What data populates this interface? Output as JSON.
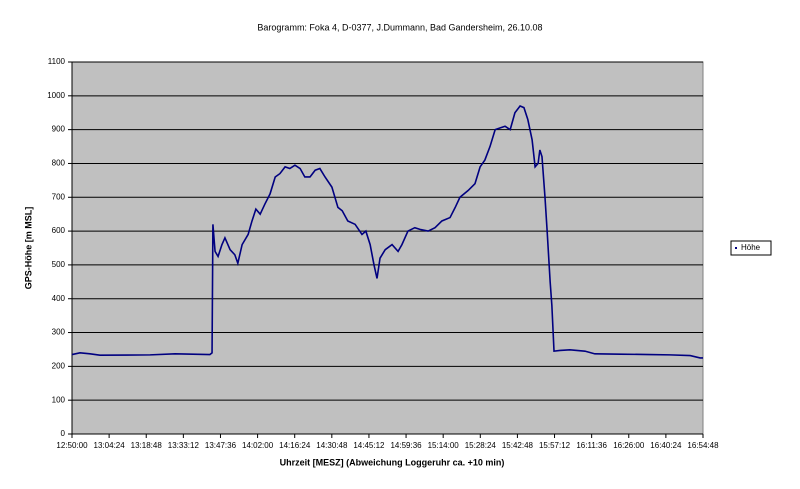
{
  "chart_data": {
    "type": "line",
    "title": "Barogramm: Foka 4, D-0377, J.Dummann, Bad Gandersheim, 26.10.08",
    "x_label": "Uhrzeit [MESZ] (Abweichung Loggeruhr ca. +10 min)",
    "y_label": "GPS-Höhe [m MSL]",
    "x": [
      "12:50:00",
      "12:53:06",
      "12:57:00",
      "13:00:50",
      "13:20:20",
      "13:30:00",
      "13:43:30",
      "13:44:20",
      "13:44:40",
      "13:45:30",
      "13:46:40",
      "13:48:10",
      "13:49:20",
      "13:51:20",
      "13:53:10",
      "13:54:20",
      "13:56:00",
      "13:58:20",
      "13:59:50",
      "14:01:20",
      "14:03:00",
      "14:04:50",
      "14:06:50",
      "14:08:50",
      "14:10:40",
      "14:12:40",
      "14:14:30",
      "14:16:30",
      "14:18:30",
      "14:20:20",
      "14:22:20",
      "14:24:20",
      "14:26:10",
      "14:28:10",
      "14:30:50",
      "14:33:10",
      "14:34:50",
      "14:37:00",
      "14:39:50",
      "14:42:30",
      "14:44:00",
      "14:45:40",
      "14:47:10",
      "14:48:20",
      "14:49:30",
      "14:51:30",
      "14:54:10",
      "14:56:30",
      "14:58:00",
      "15:00:20",
      "15:03:00",
      "15:05:00",
      "15:08:10",
      "15:10:50",
      "15:13:30",
      "15:16:40",
      "15:18:40",
      "15:20:30",
      "15:23:40",
      "15:26:20",
      "15:28:20",
      "15:30:10",
      "15:32:10",
      "15:34:10",
      "15:36:00",
      "15:38:00",
      "15:40:00",
      "15:41:50",
      "15:43:50",
      "15:45:20",
      "15:46:50",
      "15:48:30",
      "15:49:40",
      "15:50:50",
      "15:51:30",
      "15:52:20",
      "15:53:30",
      "15:54:20",
      "15:55:30",
      "15:56:10",
      "15:57:00",
      "15:59:20",
      "16:03:10",
      "16:09:00",
      "16:12:50",
      "16:22:40",
      "16:34:10",
      "16:42:00",
      "16:49:50",
      "16:53:40",
      "16:54:48"
    ],
    "series": [
      {
        "name": "Höhe",
        "color": "#000080",
        "values": [
          235,
          240,
          237,
          233,
          234,
          237,
          235,
          240,
          620,
          540,
          525,
          560,
          580,
          545,
          530,
          505,
          560,
          590,
          630,
          665,
          650,
          680,
          710,
          760,
          770,
          790,
          785,
          795,
          785,
          760,
          760,
          780,
          785,
          760,
          730,
          670,
          660,
          630,
          620,
          590,
          600,
          560,
          500,
          460,
          520,
          545,
          560,
          540,
          560,
          600,
          610,
          605,
          600,
          610,
          630,
          640,
          670,
          700,
          720,
          740,
          790,
          810,
          850,
          900,
          905,
          910,
          900,
          950,
          970,
          965,
          930,
          870,
          790,
          800,
          840,
          820,
          700,
          600,
          450,
          380,
          245,
          247,
          249,
          245,
          237,
          236,
          235,
          234,
          232,
          225,
          225
        ]
      }
    ],
    "xlim": [
      "12:50:00",
      "16:54:48"
    ],
    "xticks": [
      "12:50:00",
      "13:04:24",
      "13:18:48",
      "13:33:12",
      "13:47:36",
      "14:02:00",
      "14:16:24",
      "14:30:48",
      "14:45:12",
      "14:59:36",
      "15:14:00",
      "15:28:24",
      "15:42:48",
      "15:57:12",
      "16:11:36",
      "16:26:00",
      "16:40:24",
      "16:54:48"
    ],
    "ylim": [
      0,
      1100
    ],
    "yticks": [
      0,
      100,
      200,
      300,
      400,
      500,
      600,
      700,
      800,
      900,
      1000,
      1100
    ],
    "grid": true,
    "legend": "right",
    "plot_background": "#c0c0c0"
  }
}
